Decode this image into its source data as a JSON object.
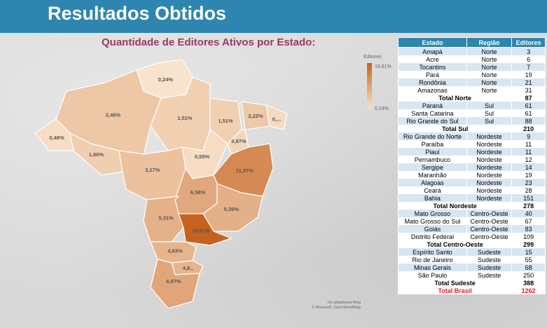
{
  "header": {
    "title": "Resultados Obtidos"
  },
  "map": {
    "title": "Quantidade de Editores Ativos por Estado:",
    "legend_title": "Editores",
    "legend_max": "19,81%",
    "legend_min": "0,24%",
    "credits_1": "Da plataforma Bing",
    "credits_2": "© Microsoft, OpenStreetMap",
    "colors": {
      "low": "#f8e3cc",
      "high": "#c6621f"
    }
  },
  "chart_data": {
    "type": "table",
    "title": "Quantidade de Editores Ativos por Estado:",
    "map_labels": [
      {
        "state": "Roraima",
        "label": "0,24%",
        "value": 0.24
      },
      {
        "state": "Amazonas",
        "label": "2,46%",
        "value": 2.46
      },
      {
        "state": "Pará",
        "label": "1,51%",
        "value": 1.51
      },
      {
        "state": "Maranhão",
        "label": "1,51%",
        "value": 1.51
      },
      {
        "state": "Ceará",
        "label": "2,22%",
        "value": 2.22
      },
      {
        "state": "Rio Grande do Norte",
        "label": "0,...",
        "value": 0.71
      },
      {
        "state": "Piauí",
        "label": "0,87%",
        "value": 0.87
      },
      {
        "state": "Acre",
        "label": "0,48%",
        "value": 0.48
      },
      {
        "state": "Rondônia",
        "label": "1,66%",
        "value": 1.66
      },
      {
        "state": "Mato Grosso",
        "label": "3,17%",
        "value": 3.17
      },
      {
        "state": "Tocantins",
        "label": "0,55%",
        "value": 0.55
      },
      {
        "state": "Bahia",
        "label": "11,97%",
        "value": 11.97
      },
      {
        "state": "Goiás",
        "label": "6,58%",
        "value": 6.58
      },
      {
        "state": "Minas Gerais",
        "label": "5,39%",
        "value": 5.39
      },
      {
        "state": "Mato Grosso do Sul",
        "label": "5,31%",
        "value": 5.31
      },
      {
        "state": "São Paulo",
        "label": "19,81%",
        "value": 19.81
      },
      {
        "state": "Paraná",
        "label": "4,83%",
        "value": 4.83
      },
      {
        "state": "Santa Catarina",
        "label": "4,8...",
        "value": 4.83
      },
      {
        "state": "Rio Grande do Sul",
        "label": "6,97%",
        "value": 6.97
      }
    ],
    "table": {
      "columns": [
        "Estado",
        "Região",
        "Editores"
      ],
      "rows": [
        {
          "type": "row",
          "estado": "Amapá",
          "regiao": "Norte",
          "editores": "3"
        },
        {
          "type": "row",
          "estado": "Acre",
          "regiao": "Norte",
          "editores": "6"
        },
        {
          "type": "row",
          "estado": "Tocantins",
          "regiao": "Norte",
          "editores": "7"
        },
        {
          "type": "row",
          "estado": "Pará",
          "regiao": "Norte",
          "editores": "19"
        },
        {
          "type": "row",
          "estado": "Rondônia",
          "regiao": "Norte",
          "editores": "21"
        },
        {
          "type": "row",
          "estado": "Amazonas",
          "regiao": "Norte",
          "editores": "31"
        },
        {
          "type": "total",
          "estado": "Total Norte",
          "editores": "87"
        },
        {
          "type": "row",
          "estado": "Paraná",
          "regiao": "Sul",
          "editores": "61"
        },
        {
          "type": "row",
          "estado": "Santa Catarina",
          "regiao": "Sul",
          "editores": "61"
        },
        {
          "type": "row",
          "estado": "Rio Grande do Sul",
          "regiao": "Sul",
          "editores": "88"
        },
        {
          "type": "total",
          "estado": "Total Sul",
          "editores": "210"
        },
        {
          "type": "row",
          "estado": "Rio Grande do Norte",
          "regiao": "Nordeste",
          "editores": "9"
        },
        {
          "type": "row",
          "estado": "Paraíba",
          "regiao": "Nordeste",
          "editores": "11"
        },
        {
          "type": "row",
          "estado": "Piauí",
          "regiao": "Nordeste",
          "editores": "11"
        },
        {
          "type": "row",
          "estado": "Pernambuco",
          "regiao": "Nordeste",
          "editores": "12"
        },
        {
          "type": "row",
          "estado": "Sergipe",
          "regiao": "Nordeste",
          "editores": "14"
        },
        {
          "type": "row",
          "estado": "Maranhão",
          "regiao": "Nordeste",
          "editores": "19"
        },
        {
          "type": "row",
          "estado": "Alagoas",
          "regiao": "Nordeste",
          "editores": "23"
        },
        {
          "type": "row",
          "estado": "Ceará",
          "regiao": "Nordeste",
          "editores": "28"
        },
        {
          "type": "row",
          "estado": "Bahia",
          "regiao": "Nordeste",
          "editores": "151"
        },
        {
          "type": "total",
          "estado": "Total Nordeste",
          "editores": "278"
        },
        {
          "type": "row",
          "estado": "Mato Grosso",
          "regiao": "Centro-Oeste",
          "editores": "40"
        },
        {
          "type": "row",
          "estado": "Mato Grosso do Sul",
          "regiao": "Centro-Oeste",
          "editores": "67"
        },
        {
          "type": "row",
          "estado": "Goiás",
          "regiao": "Centro-Oeste",
          "editores": "83"
        },
        {
          "type": "row",
          "estado": "Distrito Federal",
          "regiao": "Centro-Oeste",
          "editores": "109"
        },
        {
          "type": "total",
          "estado": "Total Centro-Oeste",
          "editores": "299"
        },
        {
          "type": "row",
          "estado": "Espírito Santo",
          "regiao": "Sudeste",
          "editores": "15"
        },
        {
          "type": "row",
          "estado": "Rio de Janeiro",
          "regiao": "Sudeste",
          "editores": "55"
        },
        {
          "type": "row",
          "estado": "Minas Gerais",
          "regiao": "Sudeste",
          "editores": "68"
        },
        {
          "type": "row",
          "estado": "São Paulo",
          "regiao": "Sudeste",
          "editores": "250"
        },
        {
          "type": "total",
          "estado": "Total Sudeste",
          "editores": "388"
        },
        {
          "type": "brasil",
          "estado": "Total Brasil",
          "editores": "1262"
        }
      ]
    }
  }
}
